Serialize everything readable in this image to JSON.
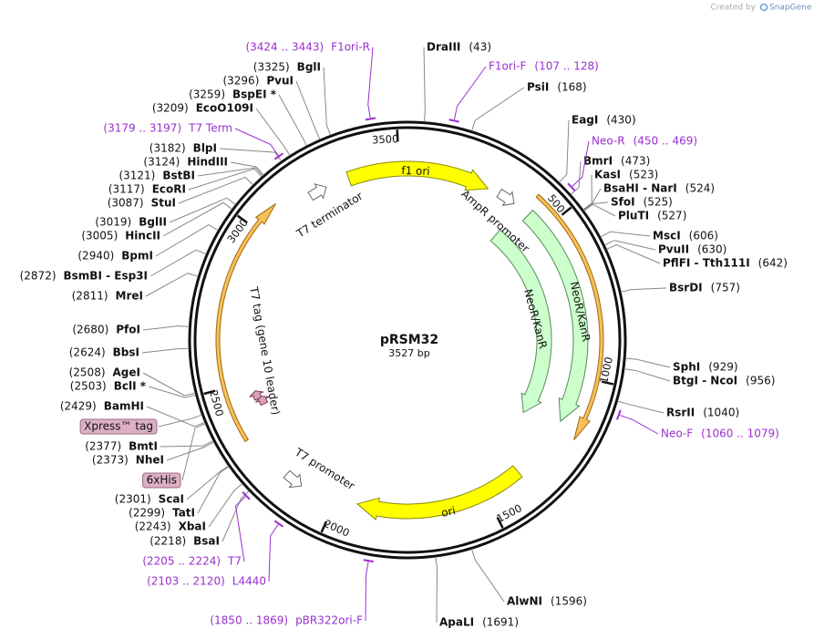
{
  "header": {
    "credit": "Created by",
    "brand": "SnapGene"
  },
  "plasmid": {
    "name": "pRSM32",
    "length": "3527 bp"
  },
  "ticks": [
    "500",
    "1000",
    "1500",
    "2000",
    "2500",
    "3000",
    "3500"
  ],
  "sites": [
    {
      "name": "DraIII",
      "position": "(43)"
    },
    {
      "name": "PsiI",
      "position": "(168)"
    },
    {
      "name": "EagI",
      "position": "(430)"
    },
    {
      "name": "BmrI",
      "position": "(473)"
    },
    {
      "name": "KasI",
      "position": "(523)"
    },
    {
      "name": "BsaHI  - NarI",
      "position": "(524)"
    },
    {
      "name": "SfoI",
      "position": "(525)"
    },
    {
      "name": "PluTI",
      "position": "(527)"
    },
    {
      "name": "MscI",
      "position": "(606)"
    },
    {
      "name": "PvuII",
      "position": "(630)"
    },
    {
      "name": "PflFI  - Tth111I",
      "position": "(642)"
    },
    {
      "name": "BsrDI",
      "position": "(757)"
    },
    {
      "name": "SphI",
      "position": "(929)"
    },
    {
      "name": "BtgI  - NcoI",
      "position": "(956)"
    },
    {
      "name": "RsrII",
      "position": "(1040)"
    },
    {
      "name": "AlwNI",
      "position": "(1596)"
    },
    {
      "name": "ApaLI",
      "position": "(1691)"
    },
    {
      "name": "BglI",
      "position": "(3325)"
    },
    {
      "name": "PvuI",
      "position": "(3296)"
    },
    {
      "name": "BspEI *",
      "position": "(3259)"
    },
    {
      "name": "EcoO109I",
      "position": "(3209)"
    },
    {
      "name": "BlpI",
      "position": "(3182)"
    },
    {
      "name": "HindIII",
      "position": "(3124)"
    },
    {
      "name": "BstBI",
      "position": "(3121)"
    },
    {
      "name": "EcoRI",
      "position": "(3117)"
    },
    {
      "name": "StuI",
      "position": "(3087)"
    },
    {
      "name": "BglII",
      "position": "(3019)"
    },
    {
      "name": "HincII",
      "position": "(3005)"
    },
    {
      "name": "BpmI",
      "position": "(2940)"
    },
    {
      "name": "BsmBI  - Esp3I",
      "position": "(2872)"
    },
    {
      "name": "MreI",
      "position": "(2811)"
    },
    {
      "name": "PfoI",
      "position": "(2680)"
    },
    {
      "name": "BbsI",
      "position": "(2624)"
    },
    {
      "name": "AgeI",
      "position": "(2508)"
    },
    {
      "name": "BclI *",
      "position": "(2503)"
    },
    {
      "name": "BamHI",
      "position": "(2429)"
    },
    {
      "name": "BmtI",
      "position": "(2377)"
    },
    {
      "name": "NheI",
      "position": "(2373)"
    },
    {
      "name": "ScaI",
      "position": "(2301)"
    },
    {
      "name": "TatI",
      "position": "(2299)"
    },
    {
      "name": "XbaI",
      "position": "(2243)"
    },
    {
      "name": "BsaI",
      "position": "(2218)"
    }
  ],
  "primers": [
    {
      "label": "F1ori-R",
      "range": "(3424 .. 3443)"
    },
    {
      "label": "F1ori-F",
      "range": "(107 .. 128)"
    },
    {
      "label": "Neo-R",
      "range": "(450 .. 469)"
    },
    {
      "label": "T7 Term",
      "range": "(3179 .. 3197)"
    },
    {
      "label": "Neo-F",
      "range": "(1060 .. 1079)"
    },
    {
      "label": "T7",
      "range": "(2205 .. 2224)"
    },
    {
      "label": "L4440",
      "range": "(2103 .. 2120)"
    },
    {
      "label": "pBR322ori-F",
      "range": "(1850 .. 1869)"
    }
  ],
  "tags": [
    "Xpress™ tag",
    "6xHis"
  ],
  "features": [
    "f1 ori",
    "AmpR promoter",
    "NeoR/KanR",
    "NeoR/KanR",
    "ori",
    "T7 promoter",
    "T7 terminator",
    "T7 tag (gene 10 leader)"
  ]
}
